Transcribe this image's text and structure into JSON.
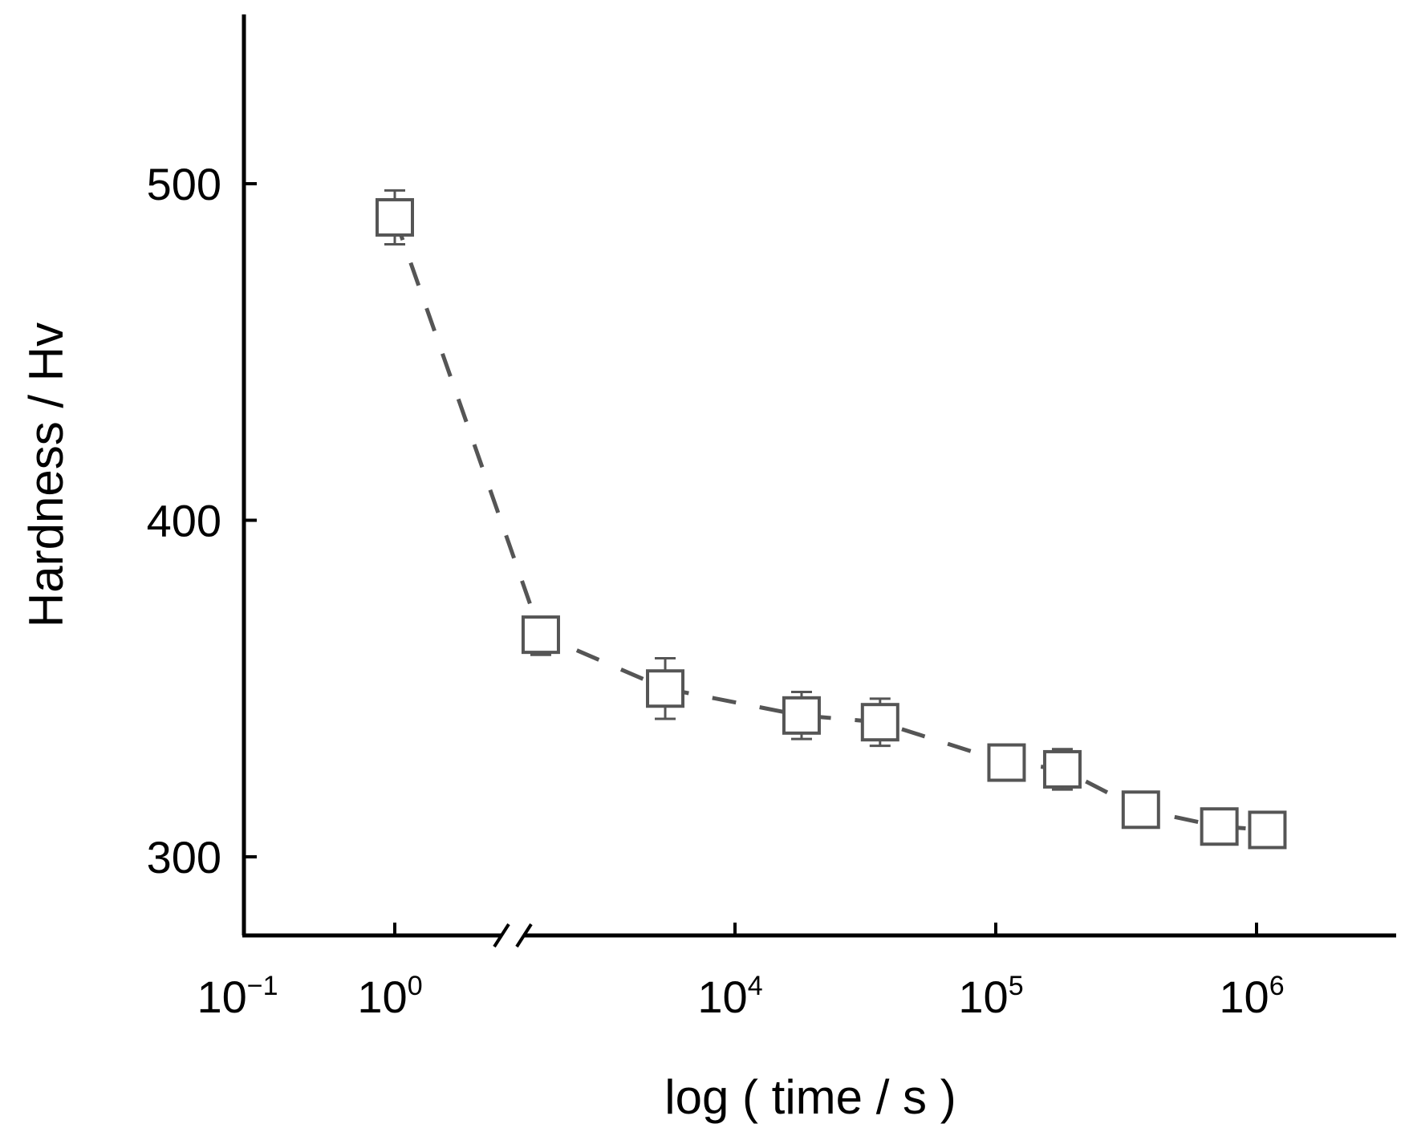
{
  "chart_data": {
    "type": "scatter",
    "title": "",
    "xlabel": "log ( time / s )",
    "ylabel": "Hardness / Hv",
    "x_scale": "log",
    "x_axis_break": true,
    "ylim": [
      280,
      555
    ],
    "x_ticks": [
      {
        "base": "10",
        "exp": "−1",
        "value": 0.1
      },
      {
        "base": "10",
        "exp": "0",
        "value": 1
      },
      {
        "base": "10",
        "exp": "4",
        "value": 10000
      },
      {
        "base": "10",
        "exp": "5",
        "value": 100000
      },
      {
        "base": "10",
        "exp": "6",
        "value": 1000000
      }
    ],
    "y_ticks": [
      300,
      400,
      500
    ],
    "marker": "open-square",
    "line_style": "dashed",
    "color": "#555555",
    "series": [
      {
        "points": [
          {
            "x": 1,
            "y": 490,
            "err_low": 8,
            "err_high": 8
          },
          {
            "x": 1800,
            "y": 366,
            "err_low": 6,
            "err_high": 5
          },
          {
            "x": 5400,
            "y": 350,
            "err_low": 9,
            "err_high": 9
          },
          {
            "x": 18000,
            "y": 342,
            "err_low": 7,
            "err_high": 7
          },
          {
            "x": 36000,
            "y": 340,
            "err_low": 7,
            "err_high": 7
          },
          {
            "x": 110000,
            "y": 328,
            "err_low": 5,
            "err_high": 5
          },
          {
            "x": 180000,
            "y": 326,
            "err_low": 6,
            "err_high": 6
          },
          {
            "x": 360000,
            "y": 314,
            "err_low": 4,
            "err_high": 4
          },
          {
            "x": 720000,
            "y": 309,
            "err_low": 4,
            "err_high": 4
          },
          {
            "x": 1100000,
            "y": 308,
            "err_low": 4,
            "err_high": 4
          }
        ]
      }
    ]
  }
}
